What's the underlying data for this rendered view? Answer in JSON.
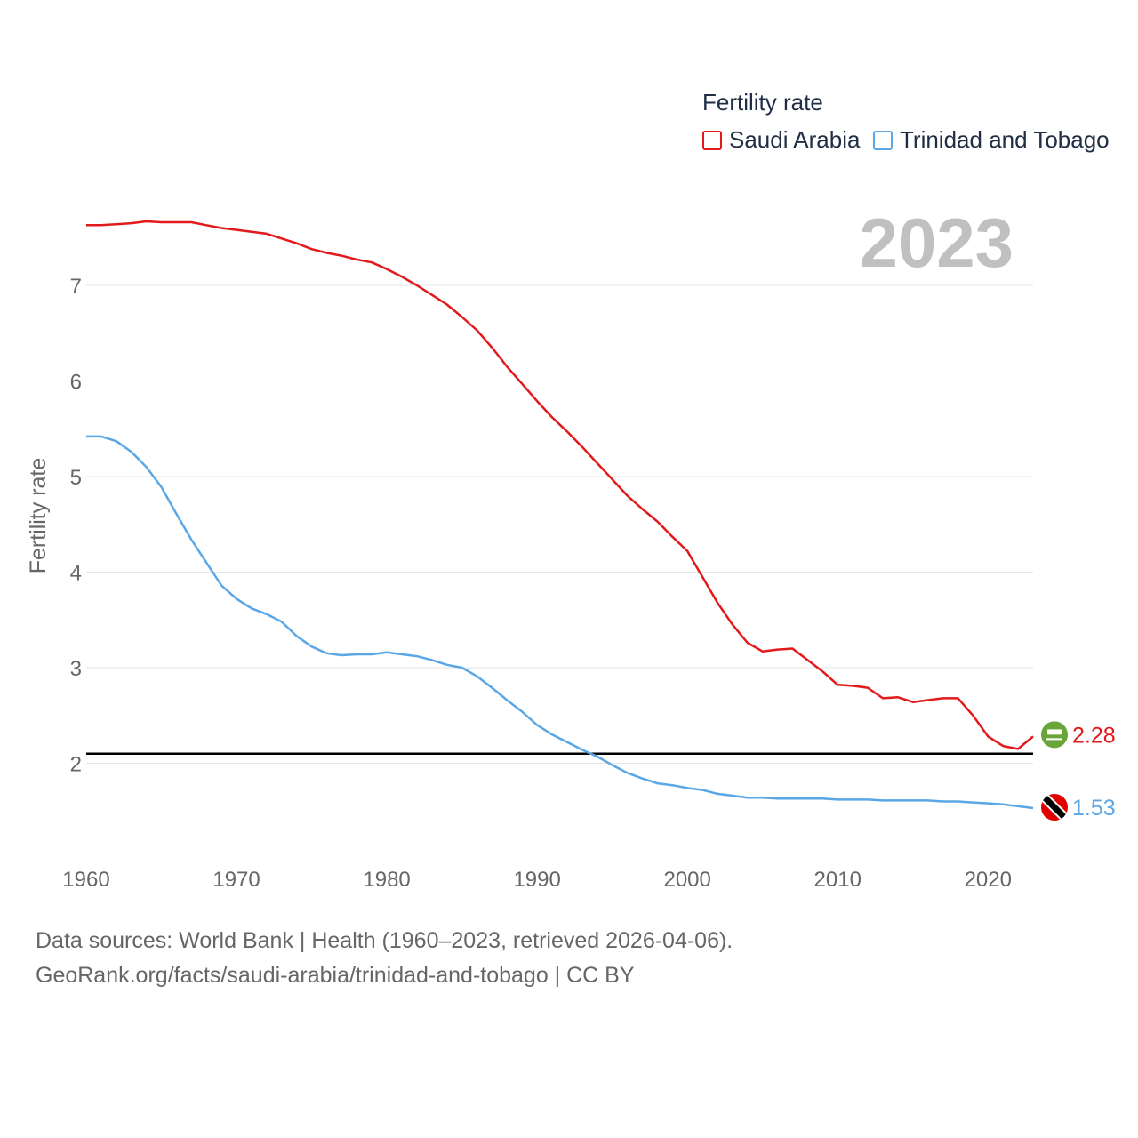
{
  "legend": {
    "title": "Fertility rate",
    "items": [
      {
        "label": "Saudi Arabia",
        "color": "#e31a1c"
      },
      {
        "label": "Trinidad and Tobago",
        "color": "#5ba7e6"
      }
    ]
  },
  "year_label": "2023",
  "source": {
    "line1": "Data sources: World Bank | Health (1960–2023, retrieved 2026-04-06).",
    "line2": "GeoRank.org/facts/saudi-arabia/trinidad-and-tobago | CC BY"
  },
  "chart_data": {
    "type": "line",
    "title": "",
    "xlabel": "",
    "ylabel": "Fertility rate",
    "xlim": [
      1960,
      2023
    ],
    "ylim": [
      1.1,
      7.9
    ],
    "x_ticks": [
      1960,
      1970,
      1980,
      1990,
      2000,
      2010,
      2020
    ],
    "y_ticks": [
      2,
      3,
      4,
      5,
      6,
      7
    ],
    "grid": true,
    "reference_line": {
      "y": 2.1,
      "color": "#000000"
    },
    "x": [
      1960,
      1961,
      1962,
      1963,
      1964,
      1965,
      1966,
      1967,
      1968,
      1969,
      1970,
      1971,
      1972,
      1973,
      1974,
      1975,
      1976,
      1977,
      1978,
      1979,
      1980,
      1981,
      1982,
      1983,
      1984,
      1985,
      1986,
      1987,
      1988,
      1989,
      1990,
      1991,
      1992,
      1993,
      1994,
      1995,
      1996,
      1997,
      1998,
      1999,
      2000,
      2001,
      2002,
      2003,
      2004,
      2005,
      2006,
      2007,
      2008,
      2009,
      2010,
      2011,
      2012,
      2013,
      2014,
      2015,
      2016,
      2017,
      2018,
      2019,
      2020,
      2021,
      2022,
      2023
    ],
    "series": [
      {
        "name": "Saudi Arabia",
        "color": "#e31a1c",
        "end_label": "2.28",
        "flag": "saudi-arabia",
        "values": [
          7.63,
          7.63,
          7.64,
          7.65,
          7.67,
          7.66,
          7.66,
          7.66,
          7.63,
          7.6,
          7.58,
          7.56,
          7.54,
          7.49,
          7.44,
          7.38,
          7.34,
          7.31,
          7.27,
          7.24,
          7.17,
          7.09,
          7.0,
          6.9,
          6.8,
          6.67,
          6.53,
          6.35,
          6.15,
          5.97,
          5.79,
          5.62,
          5.47,
          5.31,
          5.14,
          4.97,
          4.8,
          4.66,
          4.53,
          4.37,
          4.22,
          3.95,
          3.68,
          3.45,
          3.26,
          3.17,
          3.19,
          3.2,
          3.08,
          2.96,
          2.82,
          2.81,
          2.79,
          2.68,
          2.69,
          2.64,
          2.66,
          2.68,
          2.68,
          2.5,
          2.28,
          2.18,
          2.15,
          2.28
        ]
      },
      {
        "name": "Trinidad and Tobago",
        "color": "#5ba7e6",
        "end_label": "1.53",
        "flag": "trinidad-and-tobago",
        "values": [
          5.42,
          5.42,
          5.37,
          5.26,
          5.1,
          4.89,
          4.61,
          4.34,
          4.1,
          3.86,
          3.72,
          3.62,
          3.56,
          3.48,
          3.33,
          3.22,
          3.15,
          3.13,
          3.14,
          3.14,
          3.16,
          3.14,
          3.12,
          3.08,
          3.03,
          3.0,
          2.91,
          2.79,
          2.66,
          2.54,
          2.4,
          2.3,
          2.22,
          2.14,
          2.07,
          1.98,
          1.9,
          1.84,
          1.79,
          1.77,
          1.74,
          1.72,
          1.68,
          1.66,
          1.64,
          1.64,
          1.63,
          1.63,
          1.63,
          1.63,
          1.62,
          1.62,
          1.62,
          1.61,
          1.61,
          1.61,
          1.61,
          1.6,
          1.6,
          1.59,
          1.58,
          1.57,
          1.55,
          1.53
        ]
      }
    ]
  }
}
